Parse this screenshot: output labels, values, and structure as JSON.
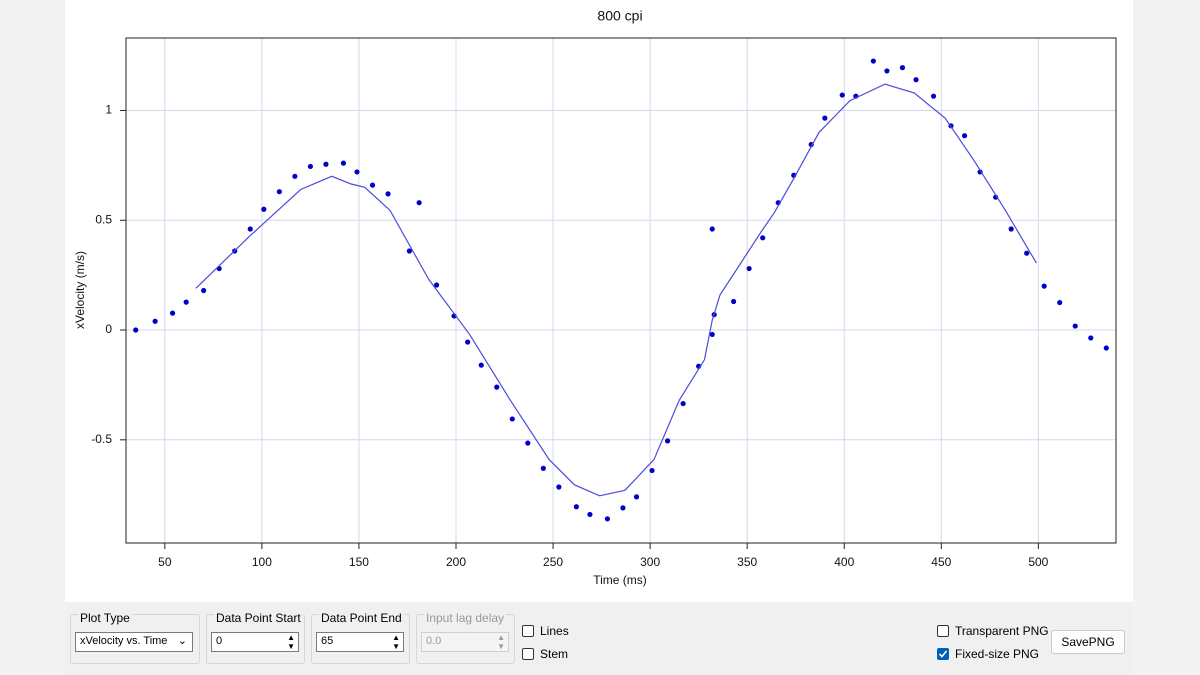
{
  "chart_data": {
    "type": "scatter",
    "title": "800 cpi",
    "x_label": "Time (ms)",
    "y_label": "xVelocity (m/s)",
    "xlim": [
      30,
      540
    ],
    "ylim": [
      -0.97,
      1.33
    ],
    "xticks": [
      50,
      100,
      150,
      200,
      250,
      300,
      350,
      400,
      450,
      500
    ],
    "yticks": [
      -0.5,
      0,
      0.5,
      1
    ],
    "grid": true,
    "series": [
      {
        "type": "scatter",
        "color": "#0000cc",
        "x": [
          35,
          45,
          54,
          61,
          70,
          78,
          86,
          94,
          101,
          109,
          117,
          125,
          133,
          142,
          149,
          157,
          165,
          181,
          176,
          190,
          199,
          206,
          213,
          221,
          229,
          237,
          245,
          253,
          262,
          269,
          278,
          286,
          293,
          301,
          309,
          317,
          325,
          332,
          332,
          333,
          343,
          351,
          358,
          366,
          374,
          383,
          390,
          399,
          406,
          415,
          422,
          430,
          437,
          446,
          455,
          462,
          470,
          478,
          486,
          494,
          503,
          511,
          519,
          527,
          535
        ],
        "values": [
          0,
          0.04,
          0.077,
          0.127,
          0.18,
          0.28,
          0.36,
          0.46,
          0.55,
          0.63,
          0.7,
          0.745,
          0.755,
          0.76,
          0.72,
          0.66,
          0.62,
          0.58,
          0.36,
          0.205,
          0.064,
          -0.055,
          -0.16,
          -0.26,
          -0.405,
          -0.515,
          -0.63,
          -0.715,
          -0.805,
          -0.84,
          -0.86,
          -0.81,
          -0.76,
          -0.64,
          -0.505,
          -0.335,
          -0.165,
          -0.02,
          0.46,
          0.07,
          0.13,
          0.28,
          0.42,
          0.58,
          0.705,
          0.845,
          0.965,
          1.07,
          1.065,
          1.225,
          1.18,
          1.195,
          1.14,
          1.065,
          0.93,
          0.885,
          0.72,
          0.605,
          0.46,
          0.35,
          0.2,
          0.125,
          0.018,
          -0.036,
          -0.082
        ]
      },
      {
        "type": "line",
        "color": "#4b4bdc",
        "x": [
          66,
          94,
          120,
          136,
          146,
          153,
          166,
          186,
          207,
          228,
          248,
          261,
          274,
          287,
          302,
          315,
          328,
          332,
          336,
          346,
          357,
          364,
          374,
          387,
          403,
          421,
          436,
          452,
          467,
          483,
          499
        ],
        "values": [
          0.19,
          0.43,
          0.64,
          0.7,
          0.665,
          0.65,
          0.545,
          0.23,
          -0.02,
          -0.32,
          -0.59,
          -0.705,
          -0.755,
          -0.73,
          -0.59,
          -0.32,
          -0.135,
          0.045,
          0.16,
          0.295,
          0.445,
          0.535,
          0.69,
          0.9,
          1.045,
          1.12,
          1.08,
          0.965,
          0.77,
          0.545,
          0.305
        ]
      }
    ]
  },
  "controls": {
    "plot_type": {
      "label": "Plot Type",
      "value": "xVelocity vs. Time"
    },
    "start": {
      "label": "Data Point Start",
      "value": 0
    },
    "end": {
      "label": "Data Point End",
      "value": 65
    },
    "lag": {
      "label": "Input lag delay",
      "value": "0.0"
    },
    "lines": {
      "label": "Lines",
      "checked": false
    },
    "stem": {
      "label": "Stem",
      "checked": false
    },
    "transparent": {
      "label": "Transparent PNG",
      "checked": false
    },
    "fixed": {
      "label": "Fixed-size PNG",
      "checked": true
    },
    "save": {
      "label": "SavePNG"
    }
  }
}
